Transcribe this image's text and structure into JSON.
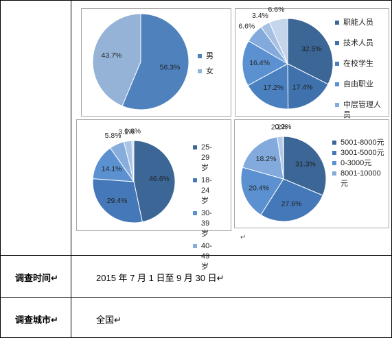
{
  "chart_data": [
    {
      "type": "pie",
      "categories": [
        "男",
        "女"
      ],
      "values": [
        56.3,
        43.7
      ],
      "value_labels": [
        "56.3%",
        "43.7%"
      ],
      "colors": [
        "#4f81bd",
        "#95b3d7"
      ]
    },
    {
      "type": "pie",
      "categories": [
        "职能人员",
        "技术人员",
        "在校学生",
        "自由职业",
        "中层管理人员",
        null,
        null
      ],
      "values": [
        32.5,
        17.4,
        17.2,
        16.4,
        6.6,
        3.4,
        6.6
      ],
      "value_labels": [
        "32.5%",
        "17.4%",
        "17.2%",
        "16.4%",
        "6.6%",
        "3.4%",
        "6.6%"
      ],
      "colors": [
        "#3b6696",
        "#3f72ad",
        "#4a80c0",
        "#5b91d0",
        "#82aadc",
        "#a7c1e3",
        "#c5d6ec"
      ]
    },
    {
      "type": "pie",
      "categories": [
        "25-29岁",
        "18-24岁",
        "30-39岁",
        "40-49岁",
        null,
        null
      ],
      "values": [
        46.6,
        29.4,
        14.1,
        5.8,
        3.1,
        0.8
      ],
      "value_labels": [
        "46.6%",
        "29.4%",
        "14.1%",
        "5.8%",
        "3.1%",
        "0.8%"
      ],
      "colors": [
        "#3b6696",
        "#4478b8",
        "#5b91d0",
        "#87addd",
        "#aac4e5",
        "#cbdaee"
      ]
    },
    {
      "type": "pie",
      "categories": [
        "5001-8000元",
        "3001-5000元",
        "0-3000元",
        "8001-10000元",
        null,
        null
      ],
      "values": [
        31.3,
        27.6,
        20.4,
        18.2,
        2.2,
        0.2
      ],
      "value_labels": [
        "31.3%",
        "27.6%",
        "20.4%",
        "18.2%",
        "2.2%",
        "0.2%"
      ],
      "colors": [
        "#3b6696",
        "#4478b8",
        "#5b91d0",
        "#82aadc",
        "#b2c9e8",
        "#d2def0"
      ]
    }
  ],
  "table": {
    "chart_cell_mark": "↵",
    "rows": [
      [
        "调查时间↵",
        "2015 年 7 月 1 日至 9 月 30 日↵"
      ],
      [
        "调查城市↵",
        "全国↵"
      ]
    ]
  }
}
